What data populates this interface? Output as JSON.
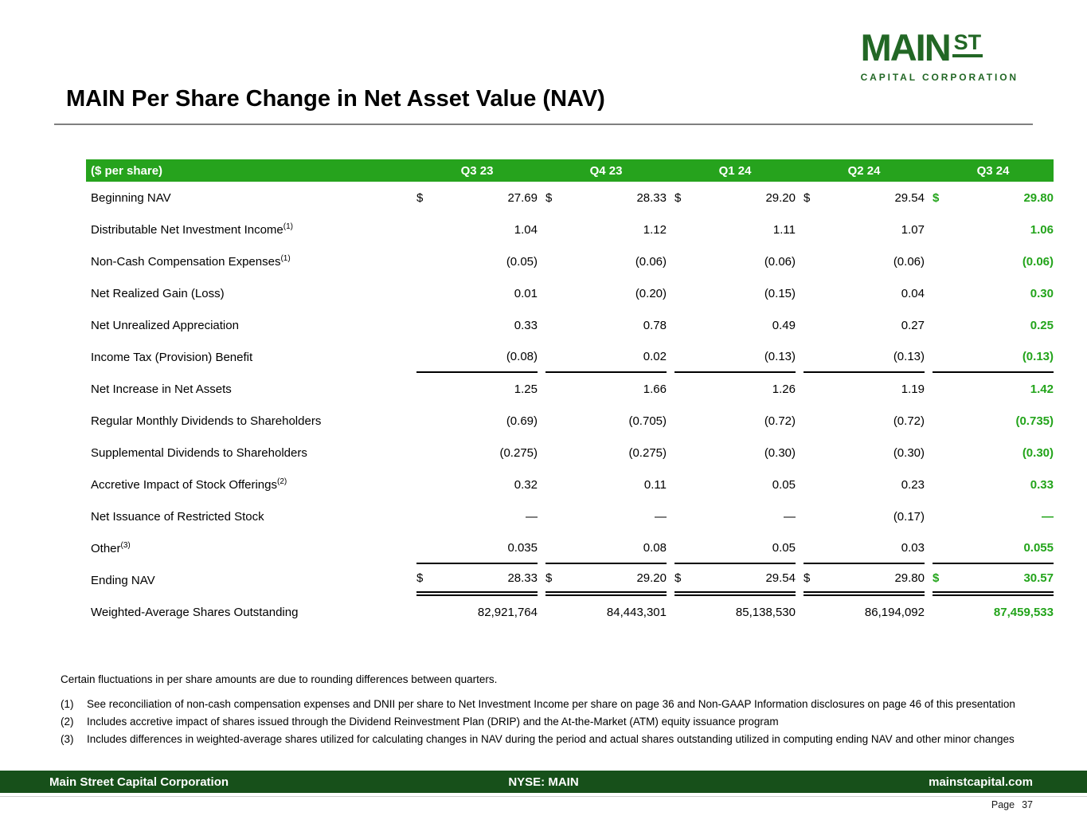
{
  "colors": {
    "header_green": "#26A31D",
    "highlight_green": "#23A41B",
    "logo_green": "#226725",
    "footer_green": "#17501A"
  },
  "logo": {
    "main": "MAIN",
    "st": "ST",
    "subtitle": "CAPITAL CORPORATION"
  },
  "title": "MAIN Per Share Change in Net Asset Value (NAV)",
  "table": {
    "header_label": "($ per share)",
    "currency_symbol": "$",
    "columns": [
      "Q3 23",
      "Q4 23",
      "Q1 24",
      "Q2 24",
      "Q3 24"
    ],
    "rows": [
      {
        "label": "Beginning NAV",
        "sup": "",
        "dollar": true,
        "underline": "none",
        "values": [
          "27.69",
          "28.33",
          "29.20",
          "29.54",
          "29.80"
        ]
      },
      {
        "label": "Distributable Net Investment Income",
        "sup": "(1)",
        "dollar": false,
        "underline": "none",
        "values": [
          "1.04",
          "1.12",
          "1.11",
          "1.07",
          "1.06"
        ]
      },
      {
        "label": "Non-Cash Compensation Expenses",
        "sup": "(1)",
        "dollar": false,
        "underline": "none",
        "values": [
          "(0.05)",
          "(0.06)",
          "(0.06)",
          "(0.06)",
          "(0.06)"
        ]
      },
      {
        "label": "Net Realized Gain (Loss)",
        "sup": "",
        "dollar": false,
        "underline": "none",
        "values": [
          "0.01",
          "(0.20)",
          "(0.15)",
          "0.04",
          "0.30"
        ]
      },
      {
        "label": "Net Unrealized Appreciation",
        "sup": "",
        "dollar": false,
        "underline": "none",
        "values": [
          "0.33",
          "0.78",
          "0.49",
          "0.27",
          "0.25"
        ]
      },
      {
        "label": "Income Tax (Provision) Benefit",
        "sup": "",
        "dollar": false,
        "underline": "single",
        "values": [
          "(0.08)",
          "0.02",
          "(0.13)",
          "(0.13)",
          "(0.13)"
        ]
      },
      {
        "label": "Net Increase in Net Assets",
        "sup": "",
        "dollar": false,
        "underline": "none",
        "values": [
          "1.25",
          "1.66",
          "1.26",
          "1.19",
          "1.42"
        ]
      },
      {
        "label": "Regular Monthly Dividends to Shareholders",
        "sup": "",
        "dollar": false,
        "underline": "none",
        "values": [
          "(0.69)",
          "(0.705)",
          "(0.72)",
          "(0.72)",
          "(0.735)"
        ]
      },
      {
        "label": "Supplemental Dividends to Shareholders",
        "sup": "",
        "dollar": false,
        "underline": "none",
        "values": [
          "(0.275)",
          "(0.275)",
          "(0.30)",
          "(0.30)",
          "(0.30)"
        ]
      },
      {
        "label": "Accretive Impact of Stock Offerings",
        "sup": "(2)",
        "dollar": false,
        "underline": "none",
        "values": [
          "0.32",
          "0.11",
          "0.05",
          "0.23",
          "0.33"
        ]
      },
      {
        "label": "Net Issuance of Restricted Stock",
        "sup": "",
        "dollar": false,
        "underline": "none",
        "values": [
          "—",
          "—",
          "—",
          "(0.17)",
          "—"
        ]
      },
      {
        "label": "Other",
        "sup": "(3)",
        "dollar": false,
        "underline": "single",
        "values": [
          "0.035",
          "0.08",
          "0.05",
          "0.03",
          "0.055"
        ]
      },
      {
        "label": "Ending NAV",
        "sup": "",
        "dollar": true,
        "underline": "double",
        "values": [
          "28.33",
          "29.20",
          "29.54",
          "29.80",
          "30.57"
        ]
      },
      {
        "label": "Weighted-Average Shares Outstanding",
        "sup": "",
        "dollar": false,
        "underline": "none",
        "values": [
          "82,921,764",
          "84,443,301",
          "85,138,530",
          "86,194,092",
          "87,459,533"
        ]
      }
    ]
  },
  "notes": {
    "rounding": "Certain fluctuations in per share amounts are due to rounding differences between quarters.",
    "items": [
      {
        "num": "(1)",
        "text": "See reconciliation of non-cash compensation expenses and DNII per share to Net Investment Income per share on page 36 and Non-GAAP Information disclosures on page 46 of this presentation"
      },
      {
        "num": "(2)",
        "text": "Includes accretive impact of shares issued through the Dividend Reinvestment Plan (DRIP) and the At-the-Market (ATM) equity issuance program"
      },
      {
        "num": "(3)",
        "text": "Includes differences in weighted-average shares utilized for calculating changes in NAV during the period and actual shares outstanding utilized in computing ending NAV and other minor changes"
      }
    ]
  },
  "footer": {
    "left": "Main Street Capital Corporation",
    "center": "NYSE: MAIN",
    "right": "mainstcapital.com"
  },
  "page": {
    "label": "Page",
    "number": "37"
  }
}
